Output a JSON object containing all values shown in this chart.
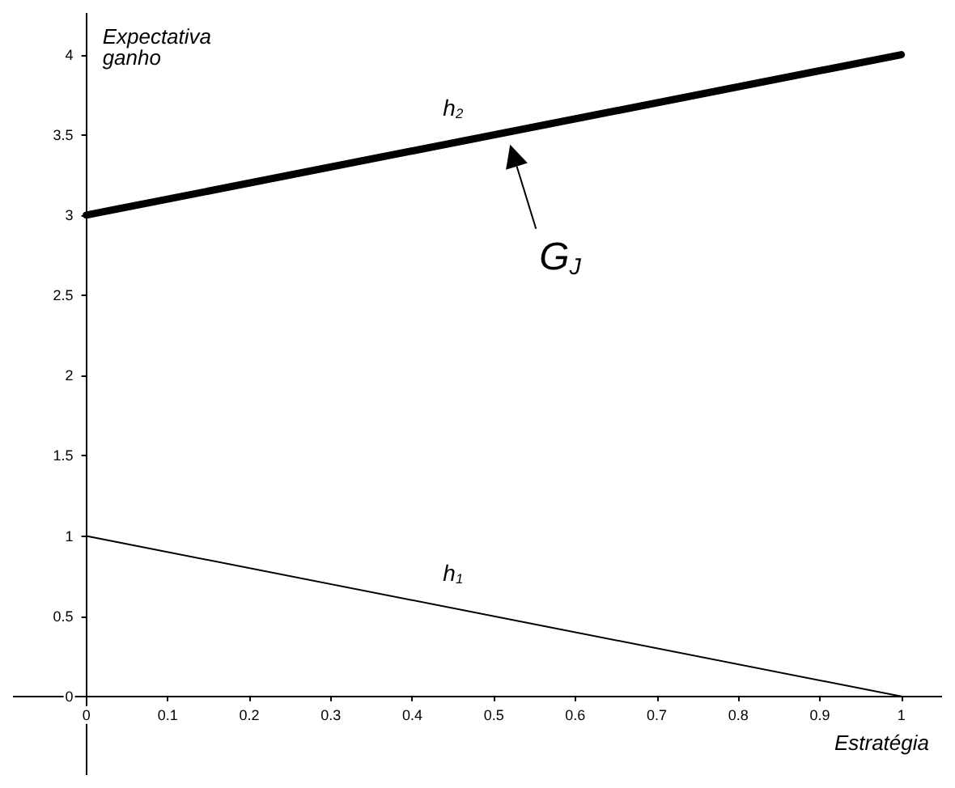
{
  "chart_data": {
    "type": "line",
    "xlabel": "Estratégia",
    "ylabel": "Expectativa ganho",
    "xlim": [
      -0.09,
      1.05
    ],
    "ylim": [
      -0.49,
      4.26
    ],
    "xticks": [
      0,
      0.1,
      0.2,
      0.3,
      0.4,
      0.5,
      0.6,
      0.7,
      0.8,
      0.9,
      1
    ],
    "yticks": [
      0,
      0.5,
      1,
      1.5,
      2,
      2.5,
      3,
      3.5,
      4
    ],
    "x": [
      0,
      1
    ],
    "series": [
      {
        "name": "h$_{2}$",
        "color": "#000000",
        "values": [
          3,
          4
        ]
      },
      {
        "name": "h$_{1}$",
        "color": "#000000",
        "values": [
          1,
          0
        ]
      }
    ],
    "annotations": [
      "G$_{J}$"
    ],
    "grid": false,
    "marker": "none",
    "line_style": "solid"
  }
}
